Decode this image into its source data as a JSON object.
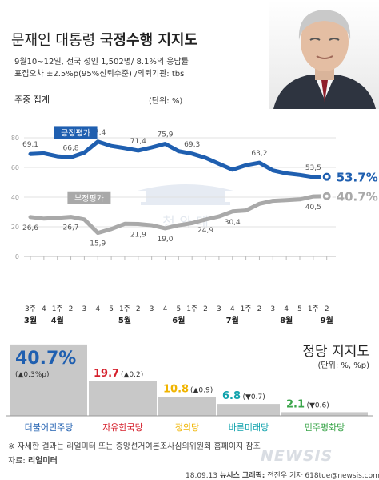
{
  "header": {
    "title_normal": "문재인 대통령",
    "title_bold": "국정수행 지지도",
    "info_line1": "9월10~12일, 전국 성인 1,502명/ 8.1%의 응답률",
    "info_line2": "표집오차 ±2.5%p(95%신뢰수준) /의뢰기관: tbs"
  },
  "line_section": {
    "heading": "주중 집계",
    "unit": "(단위: %)"
  },
  "chart_data": [
    {
      "type": "line",
      "title": "문재인 대통령 국정수행 지지도",
      "subtitle": "주중 집계",
      "unit": "(단위: %)",
      "ylim": [
        0,
        80
      ],
      "yticks": [
        0,
        20,
        40,
        60,
        80
      ],
      "grid": true,
      "x_week_labels": [
        "3주",
        "4",
        "1주",
        "2",
        "3",
        "4",
        "5",
        "1주",
        "2",
        "3",
        "4",
        "5",
        "1주",
        "2",
        "3",
        "4",
        "1주",
        "2",
        "3",
        "4",
        "5",
        "1주",
        "2"
      ],
      "month_labels": [
        {
          "label": "3월",
          "index": 0
        },
        {
          "label": "4월",
          "index": 2
        },
        {
          "label": "5월",
          "index": 7
        },
        {
          "label": "6월",
          "index": 11
        },
        {
          "label": "7월",
          "index": 15
        },
        {
          "label": "8월",
          "index": 19
        },
        {
          "label": "9월",
          "index": 22
        }
      ],
      "series": [
        {
          "name": "긍정평가",
          "color": "#1f5fb0",
          "final_label": "53.7%",
          "points": [
            [
              0,
              69.1
            ],
            [
              1,
              69.5
            ],
            [
              2,
              67.5
            ],
            [
              3,
              66.8
            ],
            [
              4,
              70.0
            ],
            [
              5,
              77.4
            ],
            [
              6,
              74.5
            ],
            [
              7,
              73.0
            ],
            [
              8,
              71.4
            ],
            [
              9,
              73.5
            ],
            [
              10,
              75.9
            ],
            [
              11,
              71.0
            ],
            [
              12,
              69.3
            ],
            [
              13,
              66.5
            ],
            [
              14,
              62.5
            ],
            [
              15,
              58.5
            ],
            [
              16,
              61.5
            ],
            [
              17,
              63.2
            ],
            [
              18,
              58.0
            ],
            [
              19,
              56.0
            ],
            [
              20,
              55.0
            ],
            [
              21,
              53.5
            ],
            [
              22,
              53.7
            ]
          ],
          "labels": [
            {
              "index": 0,
              "text": "69,1"
            },
            {
              "index": 3,
              "text": "66,8"
            },
            {
              "index": 5,
              "text": "77,4"
            },
            {
              "index": 8,
              "text": "71,4"
            },
            {
              "index": 10,
              "text": "75,9"
            },
            {
              "index": 12,
              "text": "69,3"
            },
            {
              "index": 17,
              "text": "63,2"
            },
            {
              "index": 21,
              "text": "53,5"
            }
          ]
        },
        {
          "name": "부정평가",
          "color": "#a9a9a9",
          "final_label": "40.7%",
          "points": [
            [
              0,
              26.6
            ],
            [
              1,
              25.5
            ],
            [
              2,
              26.0
            ],
            [
              3,
              26.7
            ],
            [
              4,
              25.0
            ],
            [
              5,
              15.9
            ],
            [
              6,
              18.5
            ],
            [
              7,
              22.0
            ],
            [
              8,
              21.9
            ],
            [
              9,
              21.0
            ],
            [
              10,
              19.0
            ],
            [
              11,
              21.0
            ],
            [
              12,
              22.5
            ],
            [
              13,
              24.9
            ],
            [
              14,
              27.0
            ],
            [
              15,
              30.4
            ],
            [
              16,
              31.0
            ],
            [
              17,
              35.5
            ],
            [
              18,
              37.5
            ],
            [
              19,
              38.0
            ],
            [
              20,
              38.5
            ],
            [
              21,
              40.5
            ],
            [
              22,
              40.7
            ]
          ],
          "labels": [
            {
              "index": 0,
              "text": "26,6"
            },
            {
              "index": 3,
              "text": "26,7"
            },
            {
              "index": 5,
              "text": "15,9"
            },
            {
              "index": 8,
              "text": "21,9"
            },
            {
              "index": 10,
              "text": "19,0"
            },
            {
              "index": 13,
              "text": "24,9"
            },
            {
              "index": 15,
              "text": "30,4"
            },
            {
              "index": 21,
              "text": "40,5"
            }
          ]
        }
      ]
    },
    {
      "type": "bar",
      "title": "정당 지지도",
      "unit": "(단위: %, %p)",
      "categories": [
        "더불어민주당",
        "자유한국당",
        "정의당",
        "바른미래당",
        "민주평화당"
      ],
      "values": [
        40.7,
        19.7,
        10.8,
        6.8,
        2.1
      ],
      "value_labels": [
        "40.7%",
        "19.7",
        "10.8",
        "6.8",
        "2.1"
      ],
      "change_labels": [
        "(▲0.3%p)",
        "(▲0.2)",
        "(▲0.9)",
        "(▼0.7)",
        "(▼0.6)"
      ],
      "colors": [
        "#1f5fb0",
        "#d51f2b",
        "#f0b400",
        "#12a3ad",
        "#3aa54a"
      ],
      "ylim": [
        0,
        45
      ]
    }
  ],
  "party_section": {
    "title": "정당 지지도",
    "unit": "(단위: %, %p)"
  },
  "notes": {
    "note1": "※ 자세한 결과는 리얼미터 또는 중앙선거여론조사심의위원회 홈페이지 참조",
    "source_prefix": "자료:",
    "source_name": "리얼미터"
  },
  "credit": {
    "date": "18.09.13",
    "org": "뉴시스 그래픽:",
    "author": "전진우 기자 618tue@newsis.com"
  },
  "watermark": {
    "text": "NEWSIS",
    "emblem_text": "청 와 대"
  },
  "photo": {
    "alt": "portrait"
  }
}
